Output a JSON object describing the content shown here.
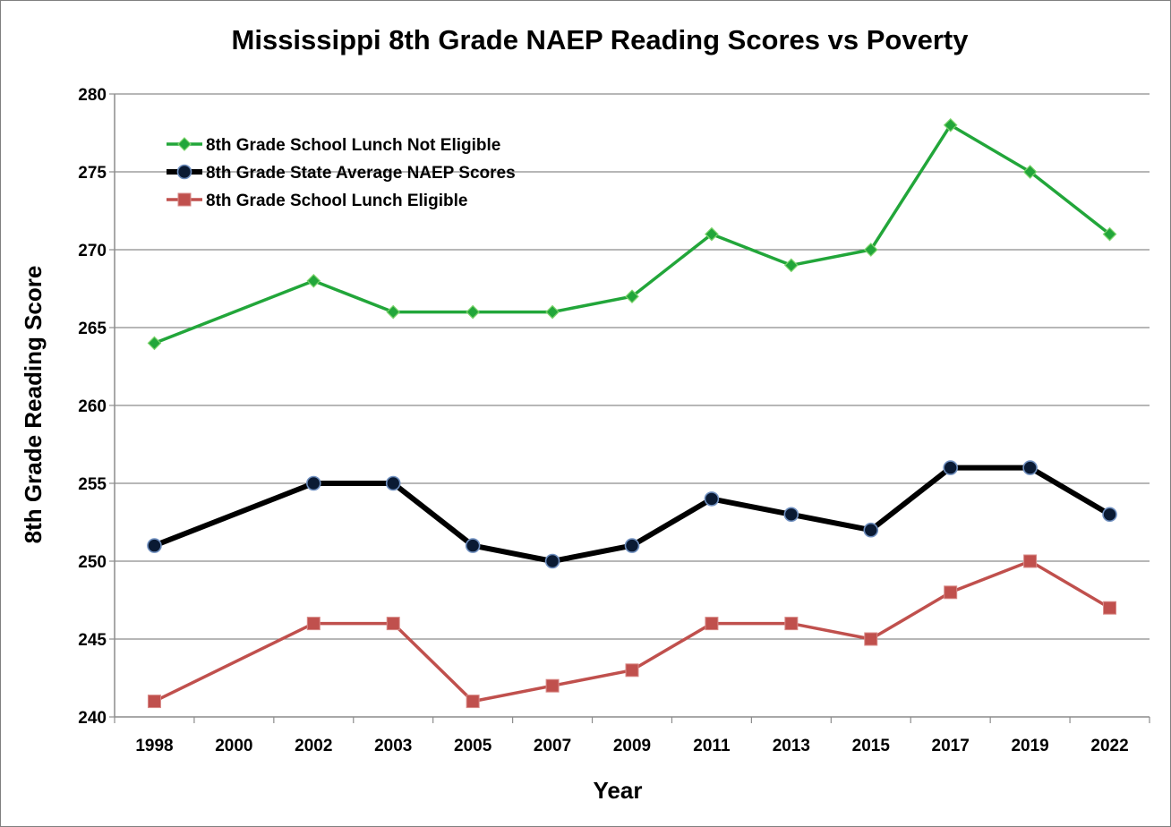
{
  "chart_data": {
    "type": "line",
    "title": "Mississippi 8th Grade NAEP Reading Scores vs Poverty",
    "xlabel": "Year",
    "ylabel": "8th Grade Reading Score",
    "categories": [
      "1998",
      "2000",
      "2002",
      "2003",
      "2005",
      "2007",
      "2009",
      "2011",
      "2013",
      "2015",
      "2017",
      "2019",
      "2022"
    ],
    "x_positions": [
      "1998",
      "2002",
      "2003",
      "2005",
      "2007",
      "2009",
      "2011",
      "2013",
      "2015",
      "2017",
      "2019",
      "2022"
    ],
    "ylim": [
      240,
      280
    ],
    "yticks": [
      "240",
      "245",
      "250",
      "255",
      "260",
      "265",
      "270",
      "275",
      "280"
    ],
    "grid": true,
    "legend_position": "top-left",
    "series": [
      {
        "name": "8th Grade School Lunch Not Eligible",
        "color": "#22a63a",
        "marker": "diamond",
        "x": [
          "1998",
          "2002",
          "2003",
          "2005",
          "2007",
          "2009",
          "2011",
          "2013",
          "2015",
          "2017",
          "2019",
          "2022"
        ],
        "values": [
          264,
          268,
          266,
          266,
          266,
          267,
          271,
          269,
          270,
          278,
          275,
          271
        ]
      },
      {
        "name": "8th Grade State Average NAEP Scores",
        "color": "#000000",
        "marker": "circle",
        "marker_fill": "#0a1a33",
        "marker_stroke": "#6f8fbf",
        "x": [
          "1998",
          "2002",
          "2003",
          "2005",
          "2007",
          "2009",
          "2011",
          "2013",
          "2015",
          "2017",
          "2019",
          "2022"
        ],
        "values": [
          251,
          255,
          255,
          251,
          250,
          251,
          254,
          253,
          252,
          256,
          256,
          253
        ]
      },
      {
        "name": "8th Grade School Lunch Eligible",
        "color": "#c0504d",
        "marker": "square",
        "x": [
          "1998",
          "2002",
          "2003",
          "2005",
          "2007",
          "2009",
          "2011",
          "2013",
          "2015",
          "2017",
          "2019",
          "2022"
        ],
        "values": [
          241,
          246,
          246,
          241,
          242,
          243,
          246,
          246,
          245,
          248,
          250,
          247
        ]
      }
    ]
  }
}
